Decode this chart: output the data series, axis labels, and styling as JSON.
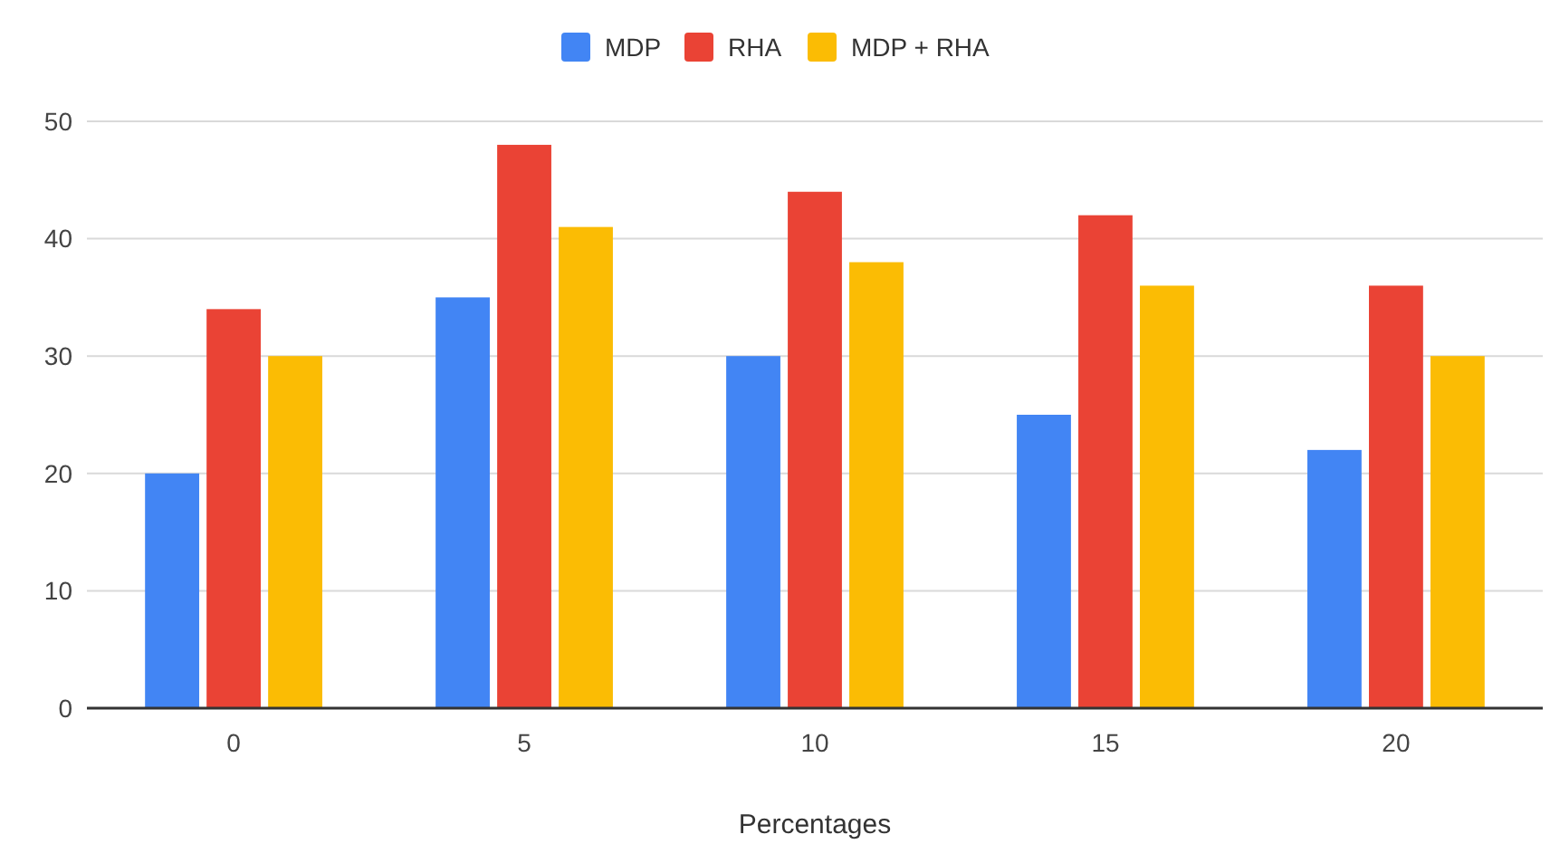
{
  "chart_data": {
    "type": "bar",
    "xlabel": "Percentages",
    "categories": [
      "0",
      "5",
      "10",
      "15",
      "20"
    ],
    "series": [
      {
        "name": "MDP",
        "color": "#4285f4",
        "values": [
          20,
          35,
          30,
          25,
          22
        ]
      },
      {
        "name": "RHA",
        "color": "#ea4335",
        "values": [
          34,
          48,
          44,
          42,
          36
        ]
      },
      {
        "name": "MDP + RHA",
        "color": "#fbbc04",
        "values": [
          30,
          41,
          38,
          36,
          30
        ]
      }
    ],
    "ylim": [
      0,
      50
    ],
    "yticks": [
      0,
      10,
      20,
      30,
      40,
      50
    ],
    "grid": "y",
    "legend": "top"
  }
}
